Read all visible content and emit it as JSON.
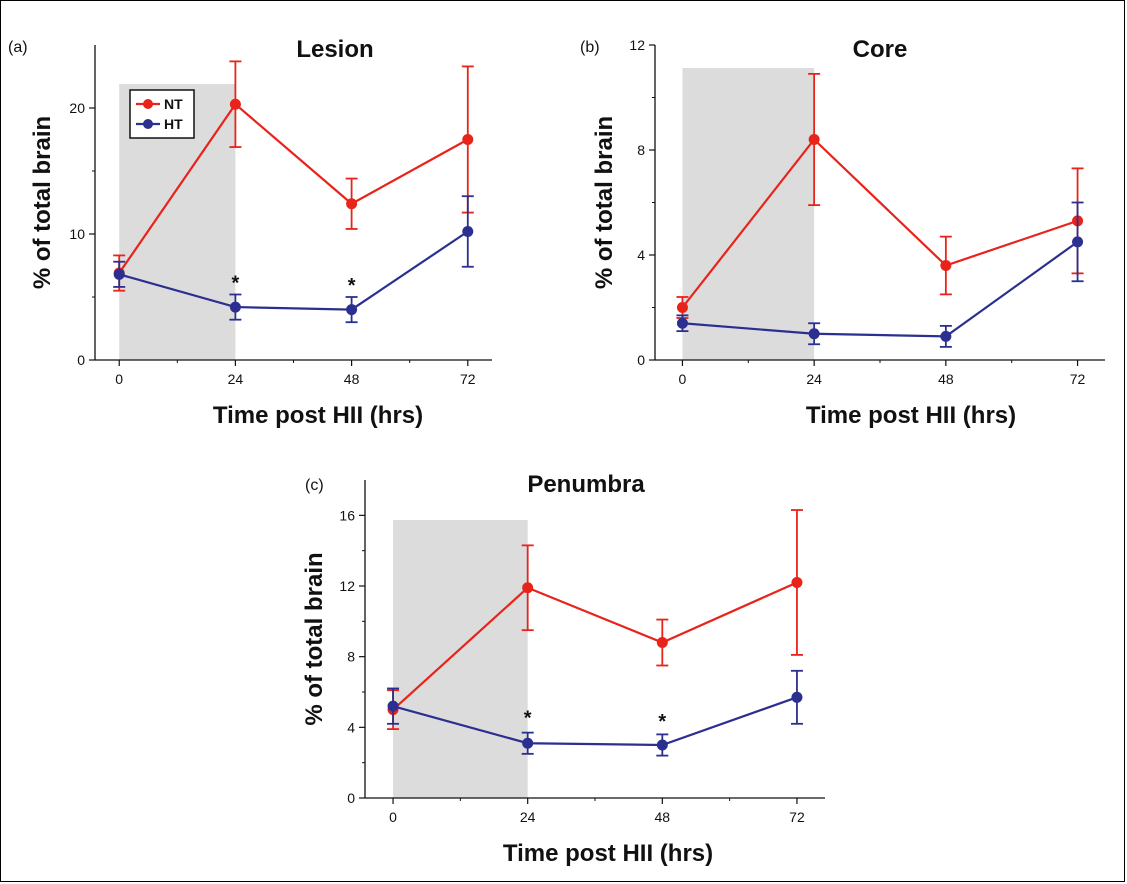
{
  "chart_data": [
    {
      "type": "line",
      "panel_label": "(a)",
      "title": "Lesion",
      "xlabel": "Time post HII (hrs)",
      "ylabel": "% of total brain",
      "x": [
        0,
        24,
        48,
        72
      ],
      "xticks": [
        0,
        24,
        48,
        72
      ],
      "xlim": [
        -5,
        77
      ],
      "yticks": [
        0,
        10,
        20
      ],
      "ylim": [
        0,
        25
      ],
      "shaded_region": [
        0,
        24
      ],
      "legend": {
        "position": "top-left"
      },
      "series": [
        {
          "name": "NT",
          "color": "#e8231a",
          "values": [
            6.9,
            20.3,
            12.4,
            17.5
          ],
          "errors": [
            1.4,
            3.4,
            2.0,
            5.8
          ]
        },
        {
          "name": "HT",
          "color": "#2b2f8f",
          "values": [
            6.8,
            4.2,
            4.0,
            10.2
          ],
          "errors": [
            1.0,
            1.0,
            1.0,
            2.8
          ]
        }
      ],
      "annotations": [
        {
          "x": 24,
          "y": 5.9,
          "text": "*"
        },
        {
          "x": 48,
          "y": 5.7,
          "text": "*"
        }
      ],
      "grid": false
    },
    {
      "type": "line",
      "panel_label": "(b)",
      "title": "Core",
      "xlabel": "Time post HII (hrs)",
      "ylabel": "% of total brain",
      "x": [
        0,
        24,
        48,
        72
      ],
      "xticks": [
        0,
        24,
        48,
        72
      ],
      "xlim": [
        -5,
        77
      ],
      "yticks": [
        0,
        4,
        8,
        12
      ],
      "ylim": [
        0,
        12
      ],
      "shaded_region": [
        0,
        24
      ],
      "legend": null,
      "series": [
        {
          "name": "NT",
          "color": "#e8231a",
          "values": [
            2.0,
            8.4,
            3.6,
            5.3
          ],
          "errors": [
            0.4,
            2.5,
            1.1,
            2.0
          ]
        },
        {
          "name": "HT",
          "color": "#2b2f8f",
          "values": [
            1.4,
            1.0,
            0.9,
            4.5
          ],
          "errors": [
            0.3,
            0.4,
            0.4,
            1.5
          ]
        }
      ],
      "annotations": [],
      "grid": false
    },
    {
      "type": "line",
      "panel_label": "(c)",
      "title": "Penumbra",
      "xlabel": "Time post HII (hrs)",
      "ylabel": "% of total brain",
      "x": [
        0,
        24,
        48,
        72
      ],
      "xticks": [
        0,
        24,
        48,
        72
      ],
      "xlim": [
        -5,
        77
      ],
      "yticks": [
        0,
        4,
        8,
        12,
        16
      ],
      "ylim": [
        0,
        18
      ],
      "shaded_region": [
        0,
        24
      ],
      "legend": null,
      "series": [
        {
          "name": "NT",
          "color": "#e8231a",
          "values": [
            5.0,
            11.9,
            8.8,
            12.2
          ],
          "errors": [
            1.1,
            2.4,
            1.3,
            4.1
          ]
        },
        {
          "name": "HT",
          "color": "#2b2f8f",
          "values": [
            5.2,
            3.1,
            3.0,
            5.7
          ],
          "errors": [
            1.0,
            0.6,
            0.6,
            1.5
          ]
        }
      ],
      "annotations": [
        {
          "x": 24,
          "y": 4.4,
          "text": "*"
        },
        {
          "x": 48,
          "y": 4.2,
          "text": "*"
        }
      ],
      "grid": false
    }
  ]
}
